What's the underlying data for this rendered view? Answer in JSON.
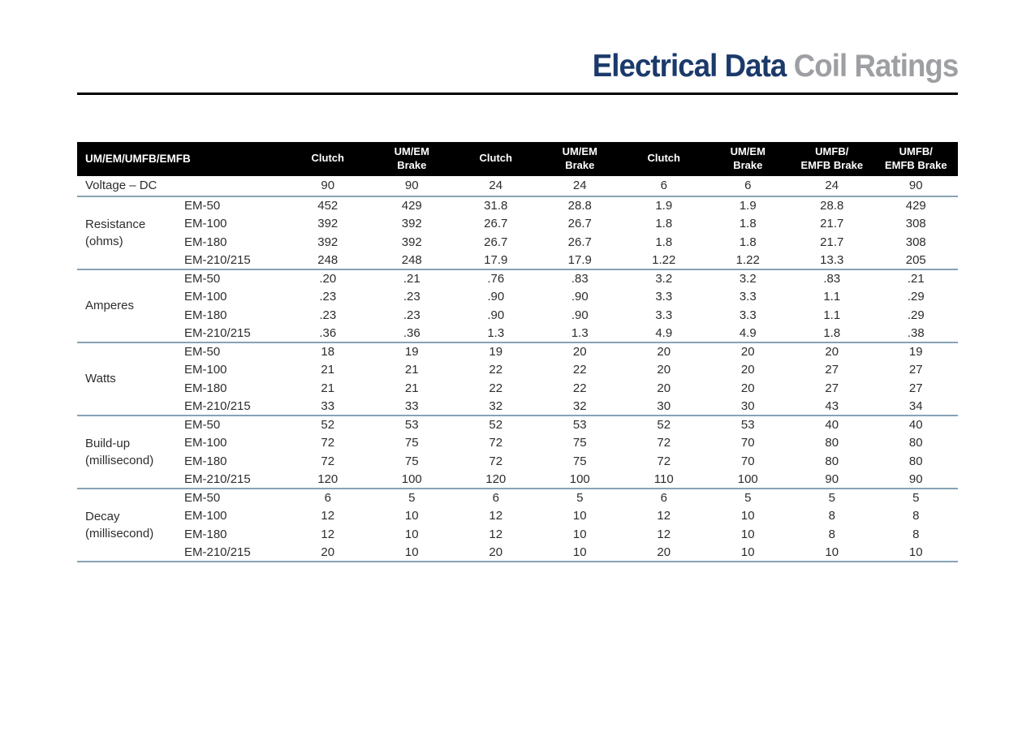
{
  "header": {
    "title_primary": "Electrical Data",
    "title_secondary": "Coil Ratings"
  },
  "table": {
    "corner_label": "UM/EM/UMFB/EMFB",
    "columns": [
      {
        "lines": [
          "Clutch"
        ]
      },
      {
        "lines": [
          "UM/EM",
          "Brake"
        ]
      },
      {
        "lines": [
          "Clutch"
        ]
      },
      {
        "lines": [
          "UM/EM",
          "Brake"
        ]
      },
      {
        "lines": [
          "Clutch"
        ]
      },
      {
        "lines": [
          "UM/EM",
          "Brake"
        ]
      },
      {
        "lines": [
          "UMFB/",
          "EMFB Brake"
        ]
      },
      {
        "lines": [
          "UMFB/",
          "EMFB Brake"
        ]
      }
    ],
    "voltage_row": {
      "label": "Voltage – DC",
      "values": [
        "90",
        "90",
        "24",
        "24",
        "6",
        "6",
        "24",
        "90"
      ]
    },
    "sections": [
      {
        "label_lines": [
          "Resistance",
          "(ohms)"
        ],
        "rows": [
          {
            "model": "EM-50",
            "values": [
              "452",
              "429",
              "31.8",
              "28.8",
              "1.9",
              "1.9",
              "28.8",
              "429"
            ]
          },
          {
            "model": "EM-100",
            "values": [
              "392",
              "392",
              "26.7",
              "26.7",
              "1.8",
              "1.8",
              "21.7",
              "308"
            ]
          },
          {
            "model": "EM-180",
            "values": [
              "392",
              "392",
              "26.7",
              "26.7",
              "1.8",
              "1.8",
              "21.7",
              "308"
            ]
          },
          {
            "model": "EM-210/215",
            "values": [
              "248",
              "248",
              "17.9",
              "17.9",
              "1.22",
              "1.22",
              "13.3",
              "205"
            ]
          }
        ]
      },
      {
        "label_lines": [
          "Amperes"
        ],
        "rows": [
          {
            "model": "EM-50",
            "values": [
              ".20",
              ".21",
              ".76",
              ".83",
              "3.2",
              "3.2",
              ".83",
              ".21"
            ]
          },
          {
            "model": "EM-100",
            "values": [
              ".23",
              ".23",
              ".90",
              ".90",
              "3.3",
              "3.3",
              "1.1",
              ".29"
            ]
          },
          {
            "model": "EM-180",
            "values": [
              ".23",
              ".23",
              ".90",
              ".90",
              "3.3",
              "3.3",
              "1.1",
              ".29"
            ]
          },
          {
            "model": "EM-210/215",
            "values": [
              ".36",
              ".36",
              "1.3",
              "1.3",
              "4.9",
              "4.9",
              "1.8",
              ".38"
            ]
          }
        ]
      },
      {
        "label_lines": [
          "Watts"
        ],
        "rows": [
          {
            "model": "EM-50",
            "values": [
              "18",
              "19",
              "19",
              "20",
              "20",
              "20",
              "20",
              "19"
            ]
          },
          {
            "model": "EM-100",
            "values": [
              "21",
              "21",
              "22",
              "22",
              "20",
              "20",
              "27",
              "27"
            ]
          },
          {
            "model": "EM-180",
            "values": [
              "21",
              "21",
              "22",
              "22",
              "20",
              "20",
              "27",
              "27"
            ]
          },
          {
            "model": "EM-210/215",
            "values": [
              "33",
              "33",
              "32",
              "32",
              "30",
              "30",
              "43",
              "34"
            ]
          }
        ]
      },
      {
        "label_lines": [
          "Build-up",
          "(millisecond)"
        ],
        "rows": [
          {
            "model": "EM-50",
            "values": [
              "52",
              "53",
              "52",
              "53",
              "52",
              "53",
              "40",
              "40"
            ]
          },
          {
            "model": "EM-100",
            "values": [
              "72",
              "75",
              "72",
              "75",
              "72",
              "70",
              "80",
              "80"
            ]
          },
          {
            "model": "EM-180",
            "values": [
              "72",
              "75",
              "72",
              "75",
              "72",
              "70",
              "80",
              "80"
            ]
          },
          {
            "model": "EM-210/215",
            "values": [
              "120",
              "100",
              "120",
              "100",
              "110",
              "100",
              "90",
              "90"
            ]
          }
        ]
      },
      {
        "label_lines": [
          "Decay",
          "(millisecond)"
        ],
        "rows": [
          {
            "model": "EM-50",
            "values": [
              "6",
              "5",
              "6",
              "5",
              "6",
              "5",
              "5",
              "5"
            ]
          },
          {
            "model": "EM-100",
            "values": [
              "12",
              "10",
              "12",
              "10",
              "12",
              "10",
              "8",
              "8"
            ]
          },
          {
            "model": "EM-180",
            "values": [
              "12",
              "10",
              "12",
              "10",
              "12",
              "10",
              "8",
              "8"
            ]
          },
          {
            "model": "EM-210/215",
            "values": [
              "20",
              "10",
              "20",
              "10",
              "20",
              "10",
              "10",
              "10"
            ]
          }
        ]
      }
    ]
  },
  "colors": {
    "title_primary": "#1b3a6b",
    "title_secondary": "#9d9fa2",
    "header_bg": "#000000",
    "header_text": "#ffffff",
    "divider": "#87a2b6",
    "body_text": "#2d2d2f",
    "rule": "#000000"
  }
}
